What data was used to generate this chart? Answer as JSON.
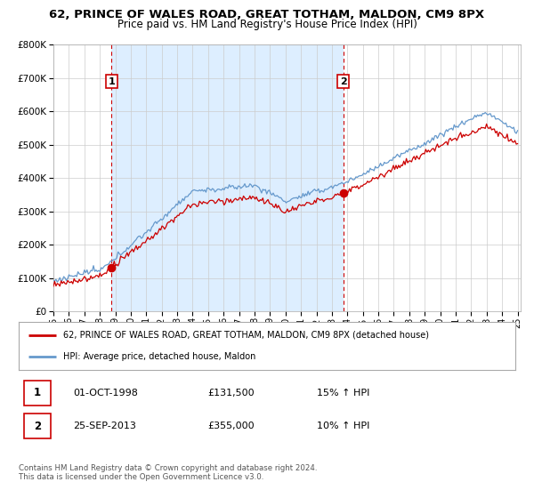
{
  "title": "62, PRINCE OF WALES ROAD, GREAT TOTHAM, MALDON, CM9 8PX",
  "subtitle": "Price paid vs. HM Land Registry's House Price Index (HPI)",
  "sale1_date": "01-OCT-1998",
  "sale1_price": 131500,
  "sale1_hpi": "15% ↑ HPI",
  "sale2_date": "25-SEP-2013",
  "sale2_price": 355000,
  "sale2_hpi": "10% ↑ HPI",
  "legend_line1": "62, PRINCE OF WALES ROAD, GREAT TOTHAM, MALDON, CM9 8PX (detached house)",
  "legend_line2": "HPI: Average price, detached house, Maldon",
  "footer": "Contains HM Land Registry data © Crown copyright and database right 2024.\nThis data is licensed under the Open Government Licence v3.0.",
  "line_color_red": "#cc0000",
  "line_color_blue": "#6699cc",
  "shade_color": "#ddeeff",
  "vline_color": "#cc0000",
  "background_color": "#ffffff",
  "grid_color": "#cccccc",
  "sale1_year": 1998.75,
  "sale2_year": 2013.73,
  "ylim": [
    0,
    800000
  ],
  "yticks": [
    0,
    100000,
    200000,
    300000,
    400000,
    500000,
    600000,
    700000,
    800000
  ],
  "xstart": 1995,
  "xend": 2025
}
